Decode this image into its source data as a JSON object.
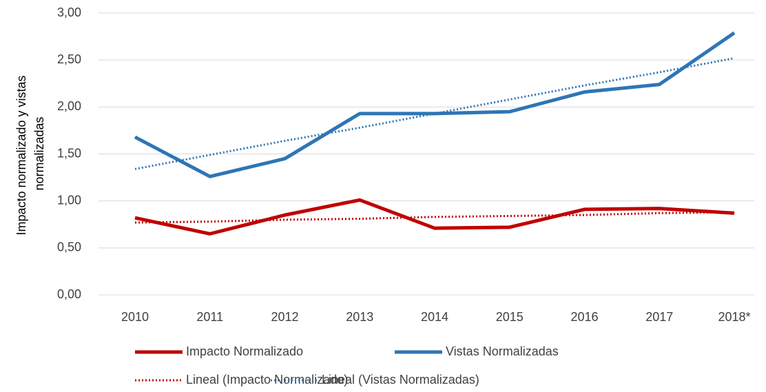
{
  "chart_data": {
    "type": "line",
    "ylabel": [
      "Impacto normalizado y vistas",
      "normalizadas"
    ],
    "categories": [
      "2010",
      "2011",
      "2012",
      "2013",
      "2014",
      "2015",
      "2016",
      "2017",
      "2018*"
    ],
    "series": [
      {
        "name": "Impacto Normalizado",
        "color": "#c00000",
        "style": "solid",
        "values": [
          0.82,
          0.65,
          0.85,
          1.01,
          0.71,
          0.72,
          0.91,
          0.92,
          0.87
        ]
      },
      {
        "name": "Vistas Normalizadas",
        "color": "#2e75b6",
        "style": "solid",
        "values": [
          1.68,
          1.26,
          1.45,
          1.93,
          1.93,
          1.95,
          2.16,
          2.24,
          2.79
        ]
      },
      {
        "name": "Lineal (Impacto Normalizado)",
        "color": "#c00000",
        "style": "dotted",
        "values": [
          0.77,
          0.78,
          0.8,
          0.81,
          0.83,
          0.84,
          0.85,
          0.87,
          0.88
        ]
      },
      {
        "name": "Lineal (Vistas Normalizadas)",
        "color": "#2e75b6",
        "style": "dotted",
        "values": [
          1.34,
          1.49,
          1.64,
          1.78,
          1.93,
          2.08,
          2.23,
          2.37,
          2.52
        ]
      }
    ],
    "ylim": [
      0,
      3
    ],
    "yticks": [
      {
        "value": 0,
        "label": "0,00"
      },
      {
        "value": 0.5,
        "label": "0,50"
      },
      {
        "value": 1,
        "label": "1,00"
      },
      {
        "value": 1.5,
        "label": "1,50"
      },
      {
        "value": 2,
        "label": "2,00"
      },
      {
        "value": 2.5,
        "label": "2,50"
      },
      {
        "value": 3,
        "label": "3,00"
      }
    ],
    "grid": true,
    "legend": "bottom"
  }
}
